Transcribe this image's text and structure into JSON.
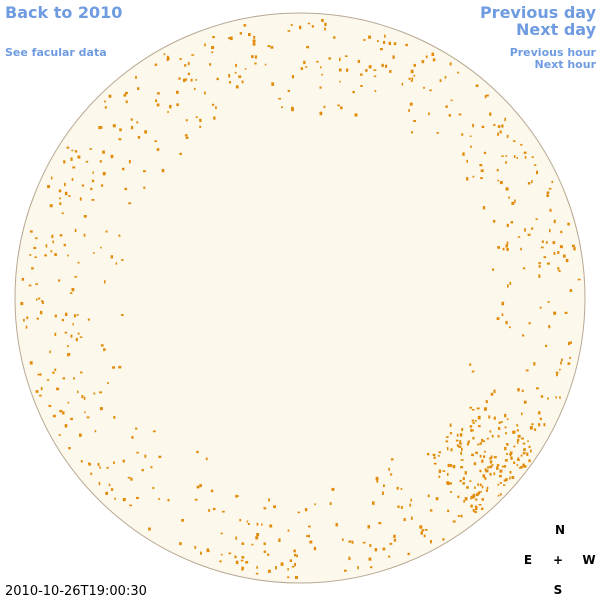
{
  "header": {
    "back_link": "Back to 2010",
    "facular_link": "See facular data",
    "previous_day": "Previous day",
    "next_day": "Next day",
    "previous_hour": "Previous hour",
    "next_hour": "Next hour"
  },
  "compass": {
    "north": "N",
    "east": "E",
    "center": "+",
    "west": "W",
    "south": "S"
  },
  "timestamp": "2010-10-26T19:00:30"
}
